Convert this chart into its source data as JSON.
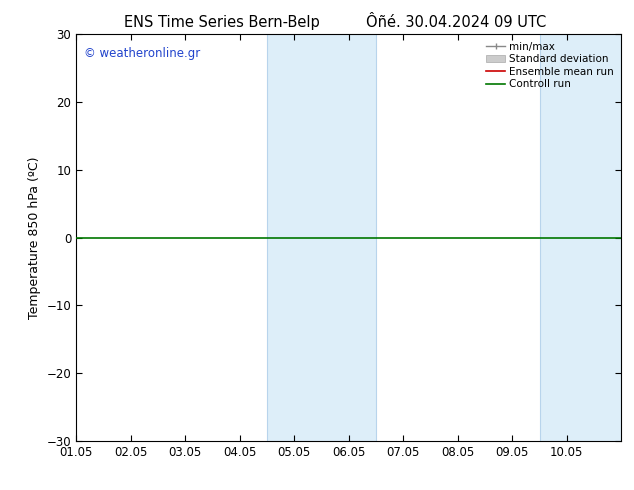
{
  "title_left": "ENS Time Series Bern-Belp",
  "title_right": "Ôñé. 30.04.2024 09 UTC",
  "ylabel": "Temperature 850 hPa (ºC)",
  "watermark": "© weatheronline.gr",
  "xlim_left": 0,
  "xlim_right": 10,
  "ylim_bottom": -30,
  "ylim_top": 30,
  "yticks": [
    -30,
    -20,
    -10,
    0,
    10,
    20,
    30
  ],
  "xtick_labels": [
    "01.05",
    "02.05",
    "03.05",
    "04.05",
    "05.05",
    "06.05",
    "07.05",
    "08.05",
    "09.05",
    "10.05"
  ],
  "xtick_positions": [
    0,
    1,
    2,
    3,
    4,
    5,
    6,
    7,
    8,
    9
  ],
  "shaded_bands": [
    {
      "x_start": 3.5,
      "x_end": 5.5,
      "color": "#ddeef9"
    },
    {
      "x_start": 8.5,
      "x_end": 10.0,
      "color": "#ddeef9"
    }
  ],
  "shaded_band_border_color": "#b8d4ec",
  "control_run_y": 0.0,
  "control_run_color": "#007700",
  "ensemble_mean_color": "#cc0000",
  "minmax_color": "#888888",
  "std_dev_color": "#cccccc",
  "background_color": "#ffffff",
  "plot_bg_color": "#ffffff",
  "border_color": "#000000",
  "title_fontsize": 10.5,
  "tick_fontsize": 8.5,
  "ylabel_fontsize": 9,
  "watermark_color": "#2244cc",
  "watermark_fontsize": 8.5,
  "legend_fontsize": 7.5
}
